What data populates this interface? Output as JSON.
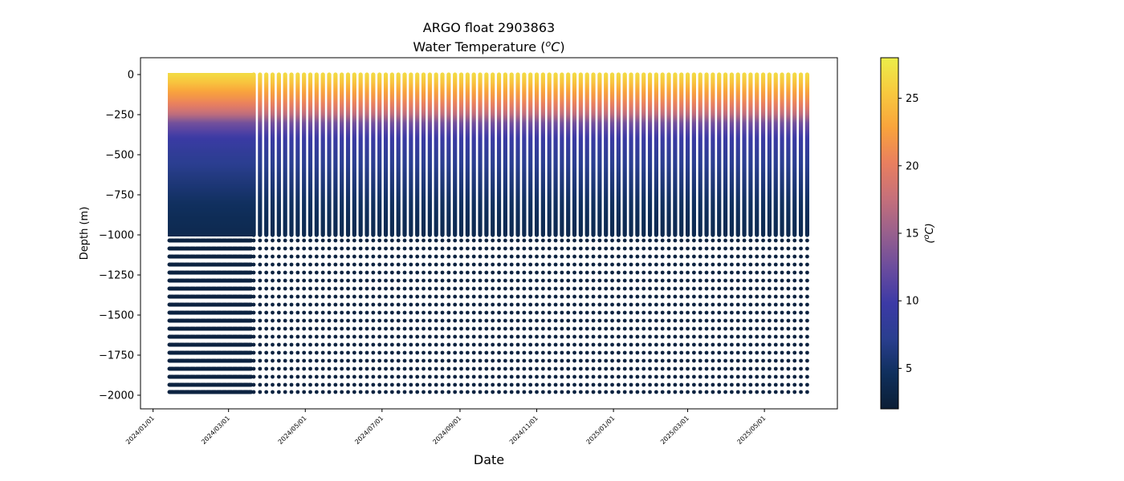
{
  "chart_data": {
    "type": "scatter",
    "title": "ARGO float 2903863",
    "subtitle": "Water Temperature (",
    "subtitle_unit": "oC",
    "subtitle_close": ")",
    "xlabel": "Date",
    "ylabel": "Depth (m)",
    "xlim": [
      "2023-12-22",
      "2025-06-28"
    ],
    "ylim": [
      -2085,
      105
    ],
    "x_ticks": [
      "2024/01/01",
      "2024/03/01",
      "2024/05/01",
      "2024/07/01",
      "2024/09/01",
      "2024/11/01",
      "2025/01/01",
      "2025/03/01",
      "2025/05/01"
    ],
    "y_ticks": [
      0,
      -250,
      -500,
      -750,
      -1000,
      -1250,
      -1500,
      -1750,
      -2000
    ],
    "y_tick_labels": [
      "0",
      "−250",
      "−500",
      "−750",
      "−1000",
      "−1250",
      "−1500",
      "−1750",
      "−2000"
    ],
    "colorbar": {
      "label": "oC",
      "range": [
        2,
        28
      ],
      "ticks": [
        5,
        10,
        15,
        20,
        25
      ],
      "tick_labels": [
        "5",
        "10",
        "15",
        "20",
        "25"
      ]
    },
    "dense_period": {
      "start": "2024-01-14",
      "end": "2024-03-19",
      "profile_interval_days": 0.5
    },
    "regular_period": {
      "start": "2024-03-19",
      "end": "2025-06-07",
      "profile_interval_days": 5
    },
    "shallow_profile": {
      "depths": [
        0,
        -50,
        -100,
        -150,
        -200,
        -250,
        -300,
        -400,
        -500,
        -600,
        -700,
        -800,
        -900,
        -1000
      ],
      "temperatures": [
        26.5,
        25.0,
        23.0,
        21.5,
        19.5,
        17.0,
        13.0,
        9.5,
        8.0,
        6.8,
        5.8,
        4.8,
        4.2,
        3.8
      ]
    },
    "deep_sample_depths": [
      -1035,
      -1085,
      -1135,
      -1185,
      -1235,
      -1285,
      -1335,
      -1385,
      -1435,
      -1485,
      -1535,
      -1585,
      -1635,
      -1685,
      -1735,
      -1785,
      -1835,
      -1885,
      -1935,
      -1980
    ],
    "deep_sample_temperature": 2.8
  },
  "colors": {
    "colormap": [
      "#0b1e35",
      "#0f2f5c",
      "#2a3e8f",
      "#3c3aa6",
      "#6a4c9e",
      "#98608d",
      "#c6707a",
      "#e97f5f",
      "#f9a33c",
      "#f8c93e",
      "#ecee4a"
    ]
  }
}
